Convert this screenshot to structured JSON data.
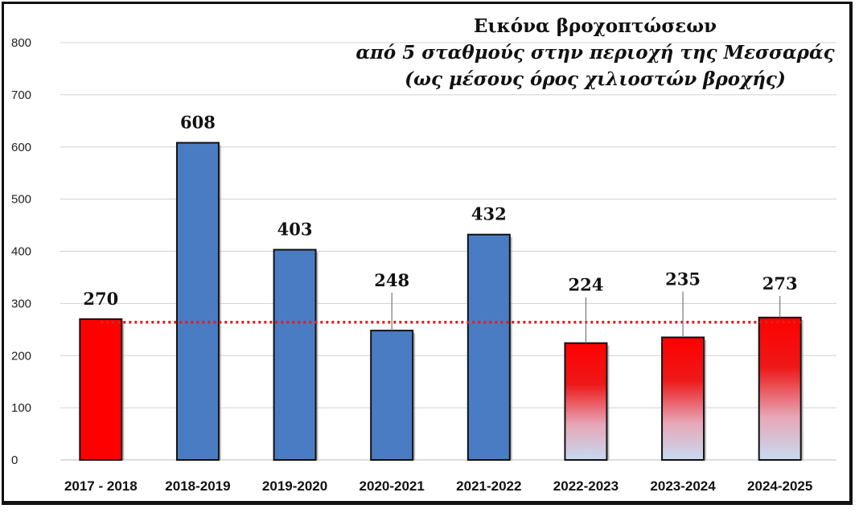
{
  "chart_data": {
    "type": "bar",
    "title_lines": [
      "Εικόνα βροχοπτώσεων",
      "από 5 σταθμούς στην περιοχή της Μεσσαράς",
      "(ως μέσους όρος χιλιοστών βροχής)"
    ],
    "categories": [
      "2017 - 2018",
      "2018-2019",
      "2019-2020",
      "2020-2021",
      "2021-2022",
      "2022-2023",
      "2023-2024",
      "2024-2025"
    ],
    "values": [
      270,
      608,
      403,
      248,
      432,
      224,
      235,
      273
    ],
    "value_labels": [
      "270",
      "608",
      "403",
      "248",
      "432",
      "224",
      "235",
      "273"
    ],
    "bar_fills": [
      "red",
      "blue",
      "blue",
      "blue",
      "blue",
      "red-gradient",
      "red-gradient",
      "red-gradient"
    ],
    "ylim": [
      0,
      800
    ],
    "yticks": [
      0,
      100,
      200,
      300,
      400,
      500,
      600,
      700,
      800
    ],
    "average_line": 264,
    "grid": true,
    "colors": {
      "red": "#ff0000",
      "blue": "#4a7cc3",
      "gradient_top": "#ff0000",
      "gradient_bottom": "#c7daf0",
      "average_line": "#e02020",
      "grid": "#d0d0d0"
    }
  }
}
